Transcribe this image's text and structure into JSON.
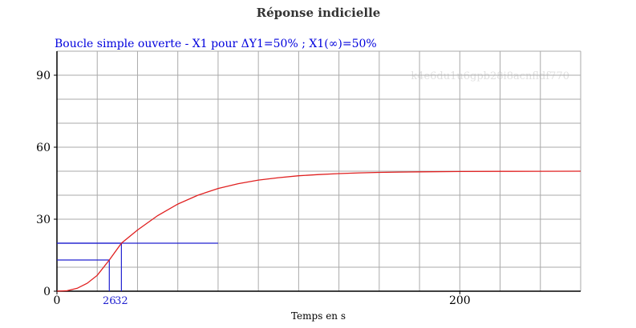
{
  "chart_data": {
    "type": "line",
    "title": "Réponse indicielle",
    "subtitle": "Boucle simple ouverte - X1 pour ΔY1=50% ; X1(∞)=50%",
    "watermark": "k4e6du1u6gpb28i8acnfldf770",
    "xlabel": "Temps en s",
    "ylabel": "",
    "xlim": [
      0,
      260
    ],
    "ylim": [
      0,
      100
    ],
    "x_ticks": [
      0,
      200
    ],
    "y_ticks": [
      0,
      30,
      60,
      90
    ],
    "grid": true,
    "series": [
      {
        "color": "#e02020",
        "x": [
          0,
          5,
          10,
          15,
          20,
          26,
          32,
          40,
          50,
          60,
          70,
          80,
          90,
          100,
          110,
          120,
          130,
          140,
          150,
          160,
          170,
          180,
          200,
          220,
          240,
          260
        ],
        "y": [
          0,
          0.2,
          1.2,
          3.3,
          6.6,
          13.0,
          20.0,
          25.5,
          31.5,
          36.3,
          40.0,
          42.8,
          44.8,
          46.3,
          47.3,
          48.1,
          48.6,
          49.0,
          49.3,
          49.5,
          49.65,
          49.75,
          49.88,
          49.94,
          49.97,
          49.99
        ]
      }
    ],
    "annotations": [
      {
        "label": "26",
        "x": 26,
        "y": 13.0,
        "color": "#2020d0"
      },
      {
        "label": "32",
        "x": 32,
        "y": 20.0,
        "color": "#2020d0"
      }
    ],
    "reference_line": {
      "y": 20.0,
      "x_end": 80,
      "color": "#2020d0"
    },
    "colors": {
      "title": "#333333",
      "subtitle": "#0000dd",
      "grid": "#aaaaaa",
      "axis": "#000000",
      "curve": "#e02020",
      "annotation": "#2020d0",
      "watermark": "#e0e0e0"
    }
  }
}
